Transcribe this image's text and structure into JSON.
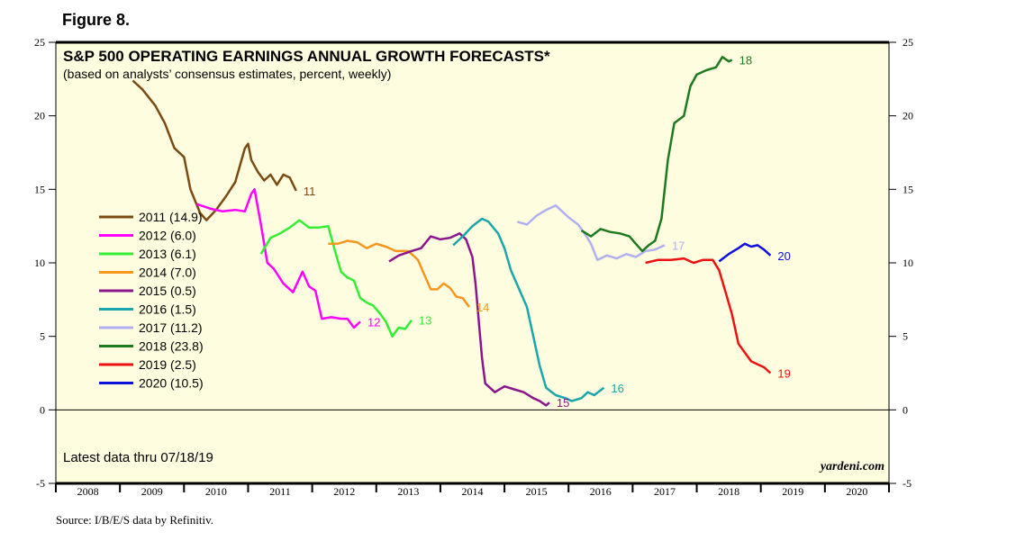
{
  "figure_label": "Figure 8.",
  "source": "Source: I/B/E/S data by Refinitiv.",
  "chart_data": {
    "type": "line",
    "title": "S&P 500 OPERATING EARNINGS ANNUAL GROWTH FORECASTS*",
    "subtitle": "(based on analysts’ consensus estimates, percent, weekly)",
    "latest_note": "Latest data thru 07/18/19",
    "watermark": "yardeni.com",
    "ylim": [
      -5,
      25
    ],
    "yticks": [
      -5,
      0,
      5,
      10,
      15,
      20,
      25
    ],
    "xlim": [
      2008,
      2021
    ],
    "x_year_labels": [
      "2008",
      "2009",
      "2010",
      "2011",
      "2012",
      "2013",
      "2014",
      "2015",
      "2016",
      "2017",
      "2018",
      "2019",
      "2020"
    ],
    "grid": false,
    "zero_line": true,
    "legend_position": "left",
    "series": [
      {
        "name": "2011 (14.9)",
        "end_label": "11",
        "color": "#7a4a12",
        "points": [
          [
            2009.2,
            22.4
          ],
          [
            2009.35,
            21.8
          ],
          [
            2009.55,
            20.7
          ],
          [
            2009.7,
            19.5
          ],
          [
            2009.85,
            17.8
          ],
          [
            2010.0,
            17.2
          ],
          [
            2010.1,
            15.0
          ],
          [
            2010.25,
            13.4
          ],
          [
            2010.35,
            12.9
          ],
          [
            2010.5,
            13.6
          ],
          [
            2010.65,
            14.5
          ],
          [
            2010.8,
            15.5
          ],
          [
            2010.95,
            17.8
          ],
          [
            2011.0,
            18.1
          ],
          [
            2011.05,
            17.0
          ],
          [
            2011.15,
            16.2
          ],
          [
            2011.25,
            15.6
          ],
          [
            2011.35,
            16.0
          ],
          [
            2011.45,
            15.3
          ],
          [
            2011.55,
            16.0
          ],
          [
            2011.65,
            15.8
          ],
          [
            2011.75,
            14.9
          ]
        ]
      },
      {
        "name": "2012 (6.0)",
        "end_label": "12",
        "color": "#ff00ff",
        "points": [
          [
            2010.2,
            14.0
          ],
          [
            2010.4,
            13.7
          ],
          [
            2010.6,
            13.5
          ],
          [
            2010.8,
            13.6
          ],
          [
            2010.95,
            13.5
          ],
          [
            2011.05,
            14.7
          ],
          [
            2011.1,
            15.0
          ],
          [
            2011.2,
            12.6
          ],
          [
            2011.3,
            10.0
          ],
          [
            2011.4,
            9.6
          ],
          [
            2011.55,
            8.6
          ],
          [
            2011.7,
            8.0
          ],
          [
            2011.85,
            9.4
          ],
          [
            2011.95,
            8.4
          ],
          [
            2012.05,
            8.1
          ],
          [
            2012.15,
            6.2
          ],
          [
            2012.3,
            6.3
          ],
          [
            2012.45,
            6.2
          ],
          [
            2012.55,
            6.2
          ],
          [
            2012.65,
            5.6
          ],
          [
            2012.75,
            6.0
          ]
        ]
      },
      {
        "name": "2013 (6.1)",
        "end_label": "13",
        "color": "#33ee33",
        "points": [
          [
            2011.2,
            10.6
          ],
          [
            2011.35,
            11.7
          ],
          [
            2011.5,
            12.0
          ],
          [
            2011.65,
            12.4
          ],
          [
            2011.8,
            12.9
          ],
          [
            2011.95,
            12.4
          ],
          [
            2012.1,
            12.4
          ],
          [
            2012.25,
            12.5
          ],
          [
            2012.35,
            10.9
          ],
          [
            2012.45,
            9.4
          ],
          [
            2012.55,
            9.0
          ],
          [
            2012.65,
            8.8
          ],
          [
            2012.75,
            7.6
          ],
          [
            2012.85,
            7.3
          ],
          [
            2012.95,
            7.1
          ],
          [
            2013.05,
            6.6
          ],
          [
            2013.15,
            6.0
          ],
          [
            2013.25,
            5.0
          ],
          [
            2013.35,
            5.6
          ],
          [
            2013.45,
            5.5
          ],
          [
            2013.55,
            6.1
          ]
        ]
      },
      {
        "name": "2014 (7.0)",
        "end_label": "14",
        "color": "#f7961f",
        "points": [
          [
            2012.25,
            11.3
          ],
          [
            2012.4,
            11.3
          ],
          [
            2012.55,
            11.5
          ],
          [
            2012.7,
            11.4
          ],
          [
            2012.85,
            11.0
          ],
          [
            2013.0,
            11.3
          ],
          [
            2013.15,
            11.1
          ],
          [
            2013.3,
            10.8
          ],
          [
            2013.5,
            10.8
          ],
          [
            2013.65,
            10.2
          ],
          [
            2013.75,
            9.2
          ],
          [
            2013.85,
            8.2
          ],
          [
            2013.95,
            8.2
          ],
          [
            2014.05,
            8.6
          ],
          [
            2014.15,
            8.3
          ],
          [
            2014.25,
            7.7
          ],
          [
            2014.35,
            7.6
          ],
          [
            2014.45,
            7.0
          ]
        ]
      },
      {
        "name": "2015 (0.5)",
        "end_label": "15",
        "color": "#8b168b",
        "points": [
          [
            2013.2,
            10.1
          ],
          [
            2013.35,
            10.5
          ],
          [
            2013.55,
            10.8
          ],
          [
            2013.7,
            11.0
          ],
          [
            2013.85,
            11.8
          ],
          [
            2014.0,
            11.6
          ],
          [
            2014.15,
            11.7
          ],
          [
            2014.3,
            12.0
          ],
          [
            2014.4,
            11.6
          ],
          [
            2014.5,
            10.4
          ],
          [
            2014.55,
            8.5
          ],
          [
            2014.6,
            6.0
          ],
          [
            2014.65,
            3.5
          ],
          [
            2014.7,
            1.8
          ],
          [
            2014.85,
            1.2
          ],
          [
            2015.0,
            1.6
          ],
          [
            2015.15,
            1.4
          ],
          [
            2015.3,
            1.2
          ],
          [
            2015.45,
            0.8
          ],
          [
            2015.55,
            0.6
          ],
          [
            2015.65,
            0.3
          ],
          [
            2015.7,
            0.5
          ]
        ]
      },
      {
        "name": "2016 (1.5)",
        "end_label": "16",
        "color": "#1aa6aa",
        "points": [
          [
            2014.2,
            11.2
          ],
          [
            2014.35,
            11.8
          ],
          [
            2014.5,
            12.5
          ],
          [
            2014.65,
            13.0
          ],
          [
            2014.75,
            12.8
          ],
          [
            2014.9,
            12.0
          ],
          [
            2015.0,
            11.0
          ],
          [
            2015.1,
            9.5
          ],
          [
            2015.25,
            8.0
          ],
          [
            2015.35,
            7.0
          ],
          [
            2015.45,
            5.0
          ],
          [
            2015.55,
            3.0
          ],
          [
            2015.65,
            1.5
          ],
          [
            2015.8,
            1.0
          ],
          [
            2015.95,
            0.8
          ],
          [
            2016.05,
            0.6
          ],
          [
            2016.2,
            0.8
          ],
          [
            2016.3,
            1.2
          ],
          [
            2016.4,
            1.0
          ],
          [
            2016.55,
            1.5
          ]
        ]
      },
      {
        "name": "2017 (11.2)",
        "end_label": "17",
        "color": "#b0b0f0",
        "points": [
          [
            2015.2,
            12.8
          ],
          [
            2015.35,
            12.6
          ],
          [
            2015.5,
            13.2
          ],
          [
            2015.65,
            13.6
          ],
          [
            2015.8,
            13.9
          ],
          [
            2015.9,
            13.5
          ],
          [
            2016.0,
            13.1
          ],
          [
            2016.15,
            12.6
          ],
          [
            2016.25,
            12.0
          ],
          [
            2016.35,
            11.3
          ],
          [
            2016.45,
            10.2
          ],
          [
            2016.6,
            10.5
          ],
          [
            2016.75,
            10.3
          ],
          [
            2016.9,
            10.6
          ],
          [
            2017.05,
            10.4
          ],
          [
            2017.2,
            10.8
          ],
          [
            2017.35,
            10.9
          ],
          [
            2017.5,
            11.2
          ]
        ]
      },
      {
        "name": "2018 (23.8)",
        "end_label": "18",
        "color": "#1e7a1e",
        "points": [
          [
            2016.2,
            12.2
          ],
          [
            2016.35,
            11.8
          ],
          [
            2016.5,
            12.3
          ],
          [
            2016.65,
            12.1
          ],
          [
            2016.8,
            12.0
          ],
          [
            2016.95,
            11.8
          ],
          [
            2017.05,
            11.3
          ],
          [
            2017.15,
            10.8
          ],
          [
            2017.25,
            11.2
          ],
          [
            2017.35,
            11.5
          ],
          [
            2017.45,
            13.0
          ],
          [
            2017.55,
            17.0
          ],
          [
            2017.65,
            19.5
          ],
          [
            2017.8,
            20.0
          ],
          [
            2017.9,
            22.0
          ],
          [
            2018.0,
            22.8
          ],
          [
            2018.15,
            23.1
          ],
          [
            2018.3,
            23.3
          ],
          [
            2018.4,
            24.0
          ],
          [
            2018.5,
            23.7
          ],
          [
            2018.55,
            23.8
          ]
        ]
      },
      {
        "name": "2019 (2.5)",
        "end_label": "19",
        "color": "#ee1111",
        "points": [
          [
            2017.2,
            10.0
          ],
          [
            2017.4,
            10.2
          ],
          [
            2017.6,
            10.2
          ],
          [
            2017.8,
            10.3
          ],
          [
            2017.95,
            10.0
          ],
          [
            2018.1,
            10.2
          ],
          [
            2018.25,
            10.2
          ],
          [
            2018.35,
            9.5
          ],
          [
            2018.45,
            8.0
          ],
          [
            2018.55,
            6.5
          ],
          [
            2018.65,
            4.5
          ],
          [
            2018.75,
            3.9
          ],
          [
            2018.85,
            3.3
          ],
          [
            2018.95,
            3.1
          ],
          [
            2019.05,
            2.9
          ],
          [
            2019.15,
            2.5
          ]
        ]
      },
      {
        "name": "2020 (10.5)",
        "end_label": "20",
        "color": "#1010dd",
        "points": [
          [
            2018.35,
            10.1
          ],
          [
            2018.5,
            10.6
          ],
          [
            2018.65,
            11.0
          ],
          [
            2018.75,
            11.3
          ],
          [
            2018.85,
            11.1
          ],
          [
            2018.95,
            11.2
          ],
          [
            2019.05,
            10.9
          ],
          [
            2019.15,
            10.5
          ]
        ]
      }
    ]
  }
}
